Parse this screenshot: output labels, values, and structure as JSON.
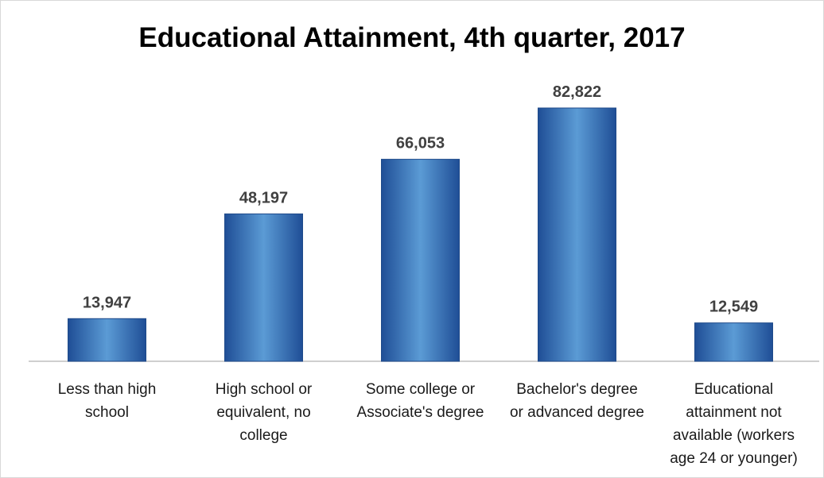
{
  "chart_data": {
    "type": "bar",
    "title": "Educational Attainment, 4th quarter, 2017",
    "xlabel": "",
    "ylabel": "",
    "categories": [
      "Less than high\nschool",
      "High school or\nequivalent, no\ncollege",
      "Some college or\nAssociate's degree",
      "Bachelor's degree\nor advanced degree",
      "Educational\nattainment not\navailable (workers\nage 24 or younger)"
    ],
    "values": [
      13947,
      48197,
      66053,
      82822,
      12549
    ],
    "value_labels": [
      "13,947",
      "48,197",
      "66,053",
      "82,822",
      "12,549"
    ],
    "ylim": [
      0,
      100000
    ],
    "grid": false,
    "legend": "none",
    "colors": {
      "bar_top": "#5b9bd5",
      "bar_mid": "#2e75b6",
      "bar_bottom": "#1f4e96",
      "bar_edge": "#1f4a8a",
      "axis": "#bfbfbf",
      "value_label": "#404040"
    }
  }
}
